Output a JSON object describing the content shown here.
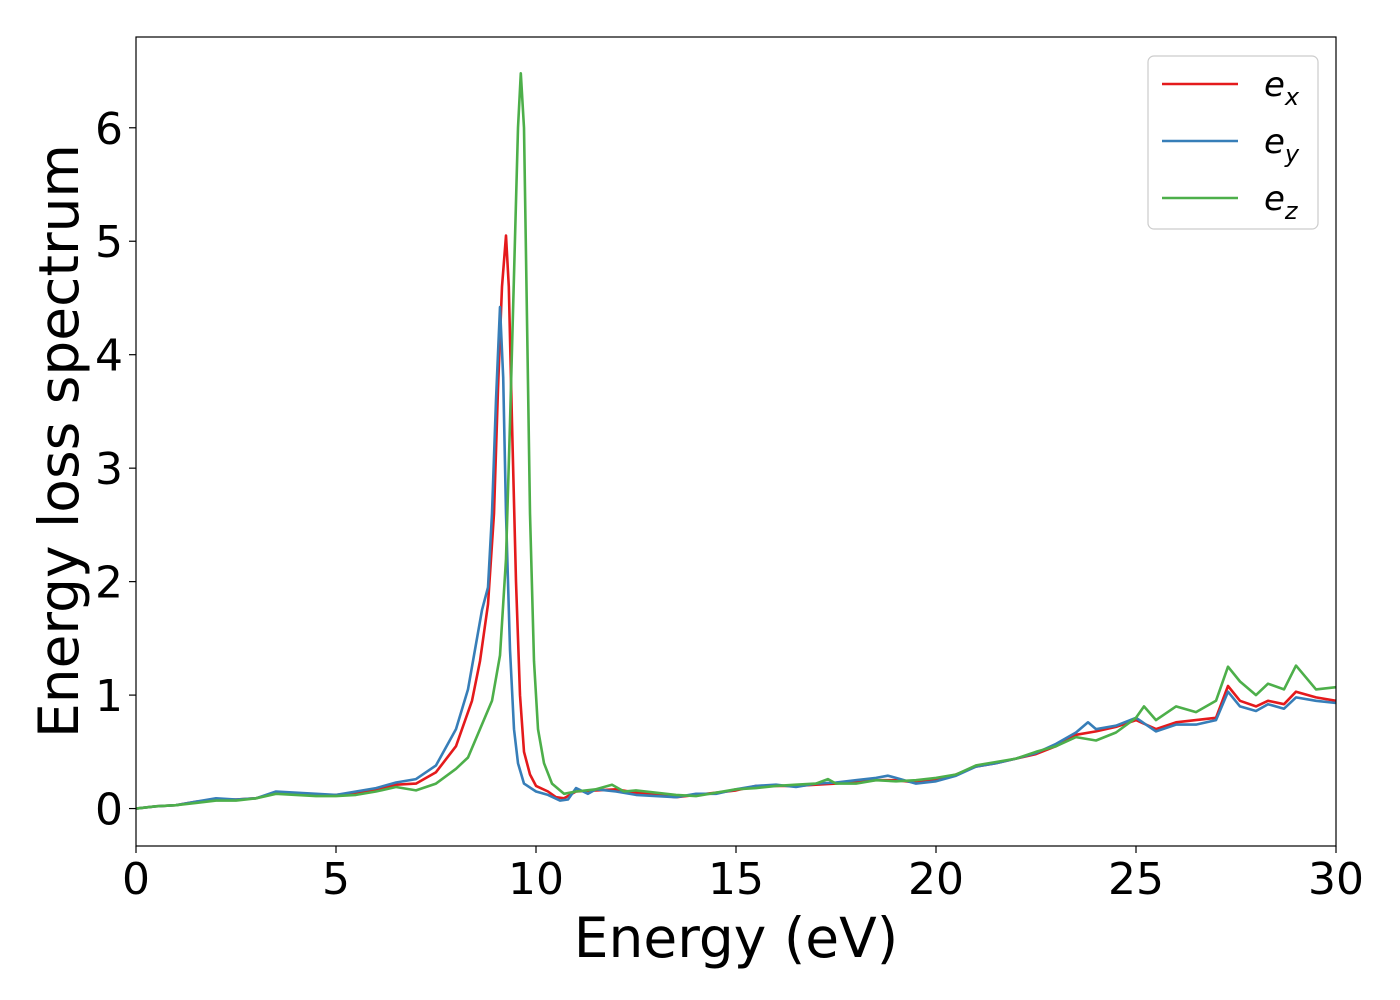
{
  "chart_data": {
    "type": "line",
    "xlabel": "Energy (eV)",
    "ylabel": "Energy loss spectrum",
    "xlim": [
      0,
      30
    ],
    "ylim": [
      -0.33,
      6.8
    ],
    "xticks": [
      "0",
      "5",
      "10",
      "15",
      "20",
      "25",
      "30"
    ],
    "yticks": [
      "0",
      "1",
      "2",
      "3",
      "4",
      "5",
      "6"
    ],
    "grid": false,
    "legend": {
      "position": "top-right"
    },
    "series": [
      {
        "name": "e_x",
        "name_base": "e",
        "name_sub": "x",
        "color": "#e41a1c",
        "points": [
          [
            0,
            0
          ],
          [
            0.5,
            0.02
          ],
          [
            1,
            0.03
          ],
          [
            1.5,
            0.06
          ],
          [
            2,
            0.08
          ],
          [
            2.5,
            0.08
          ],
          [
            3,
            0.09
          ],
          [
            3.5,
            0.14
          ],
          [
            4,
            0.13
          ],
          [
            4.5,
            0.12
          ],
          [
            5,
            0.12
          ],
          [
            5.5,
            0.14
          ],
          [
            6,
            0.16
          ],
          [
            6.5,
            0.21
          ],
          [
            7,
            0.22
          ],
          [
            7.5,
            0.32
          ],
          [
            8,
            0.55
          ],
          [
            8.4,
            0.95
          ],
          [
            8.6,
            1.3
          ],
          [
            8.8,
            1.8
          ],
          [
            8.95,
            2.6
          ],
          [
            9.05,
            3.7
          ],
          [
            9.15,
            4.6
          ],
          [
            9.25,
            5.05
          ],
          [
            9.32,
            4.6
          ],
          [
            9.4,
            3.4
          ],
          [
            9.5,
            2.0
          ],
          [
            9.6,
            1.0
          ],
          [
            9.7,
            0.5
          ],
          [
            9.85,
            0.3
          ],
          [
            10,
            0.2
          ],
          [
            10.3,
            0.15
          ],
          [
            10.5,
            0.1
          ],
          [
            10.7,
            0.09
          ],
          [
            11,
            0.15
          ],
          [
            11.5,
            0.16
          ],
          [
            12,
            0.17
          ],
          [
            12.5,
            0.14
          ],
          [
            13,
            0.12
          ],
          [
            13.5,
            0.1
          ],
          [
            14,
            0.12
          ],
          [
            14.5,
            0.14
          ],
          [
            15,
            0.16
          ],
          [
            15.5,
            0.2
          ],
          [
            16,
            0.2
          ],
          [
            16.5,
            0.2
          ],
          [
            17,
            0.21
          ],
          [
            17.5,
            0.22
          ],
          [
            18,
            0.24
          ],
          [
            18.5,
            0.25
          ],
          [
            19,
            0.25
          ],
          [
            19.5,
            0.23
          ],
          [
            20,
            0.25
          ],
          [
            20.5,
            0.3
          ],
          [
            21,
            0.37
          ],
          [
            21.5,
            0.4
          ],
          [
            22,
            0.44
          ],
          [
            22.5,
            0.48
          ],
          [
            23,
            0.55
          ],
          [
            23.5,
            0.65
          ],
          [
            24,
            0.68
          ],
          [
            24.5,
            0.72
          ],
          [
            25,
            0.78
          ],
          [
            25.5,
            0.7
          ],
          [
            26,
            0.76
          ],
          [
            26.5,
            0.78
          ],
          [
            27,
            0.8
          ],
          [
            27.3,
            1.08
          ],
          [
            27.6,
            0.95
          ],
          [
            28,
            0.9
          ],
          [
            28.3,
            0.95
          ],
          [
            28.7,
            0.92
          ],
          [
            29,
            1.03
          ],
          [
            29.5,
            0.98
          ],
          [
            30,
            0.95
          ]
        ]
      },
      {
        "name": "e_y",
        "name_base": "e",
        "name_sub": "y",
        "color": "#377eb8",
        "points": [
          [
            0,
            0
          ],
          [
            0.5,
            0.02
          ],
          [
            1,
            0.03
          ],
          [
            1.5,
            0.06
          ],
          [
            2,
            0.09
          ],
          [
            2.5,
            0.08
          ],
          [
            3,
            0.09
          ],
          [
            3.5,
            0.15
          ],
          [
            4,
            0.14
          ],
          [
            4.5,
            0.13
          ],
          [
            5,
            0.12
          ],
          [
            5.5,
            0.15
          ],
          [
            6,
            0.18
          ],
          [
            6.5,
            0.23
          ],
          [
            7,
            0.26
          ],
          [
            7.5,
            0.38
          ],
          [
            8,
            0.7
          ],
          [
            8.3,
            1.05
          ],
          [
            8.5,
            1.45
          ],
          [
            8.65,
            1.75
          ],
          [
            8.8,
            1.95
          ],
          [
            8.9,
            2.6
          ],
          [
            9.0,
            3.6
          ],
          [
            9.1,
            4.42
          ],
          [
            9.18,
            3.8
          ],
          [
            9.25,
            2.6
          ],
          [
            9.35,
            1.4
          ],
          [
            9.45,
            0.7
          ],
          [
            9.55,
            0.4
          ],
          [
            9.7,
            0.22
          ],
          [
            10,
            0.15
          ],
          [
            10.3,
            0.12
          ],
          [
            10.6,
            0.07
          ],
          [
            10.8,
            0.08
          ],
          [
            11,
            0.18
          ],
          [
            11.3,
            0.13
          ],
          [
            11.5,
            0.17
          ],
          [
            12,
            0.15
          ],
          [
            12.5,
            0.12
          ],
          [
            13,
            0.11
          ],
          [
            13.5,
            0.1
          ],
          [
            14,
            0.13
          ],
          [
            14.5,
            0.13
          ],
          [
            15,
            0.17
          ],
          [
            15.5,
            0.2
          ],
          [
            16,
            0.21
          ],
          [
            16.5,
            0.19
          ],
          [
            17,
            0.22
          ],
          [
            17.5,
            0.23
          ],
          [
            18,
            0.25
          ],
          [
            18.5,
            0.27
          ],
          [
            18.8,
            0.29
          ],
          [
            19,
            0.27
          ],
          [
            19.5,
            0.22
          ],
          [
            20,
            0.24
          ],
          [
            20.5,
            0.29
          ],
          [
            21,
            0.37
          ],
          [
            21.5,
            0.4
          ],
          [
            22,
            0.44
          ],
          [
            22.5,
            0.49
          ],
          [
            23,
            0.57
          ],
          [
            23.5,
            0.67
          ],
          [
            23.8,
            0.76
          ],
          [
            24,
            0.7
          ],
          [
            24.5,
            0.73
          ],
          [
            25,
            0.8
          ],
          [
            25.5,
            0.68
          ],
          [
            26,
            0.74
          ],
          [
            26.5,
            0.74
          ],
          [
            27,
            0.78
          ],
          [
            27.3,
            1.03
          ],
          [
            27.6,
            0.9
          ],
          [
            28,
            0.86
          ],
          [
            28.3,
            0.92
          ],
          [
            28.7,
            0.88
          ],
          [
            29,
            0.98
          ],
          [
            29.5,
            0.95
          ],
          [
            30,
            0.93
          ]
        ]
      },
      {
        "name": "e_z",
        "name_base": "e",
        "name_sub": "z",
        "color": "#4daf4a",
        "points": [
          [
            0,
            0
          ],
          [
            0.5,
            0.02
          ],
          [
            1,
            0.03
          ],
          [
            1.5,
            0.05
          ],
          [
            2,
            0.07
          ],
          [
            2.5,
            0.07
          ],
          [
            3,
            0.09
          ],
          [
            3.5,
            0.13
          ],
          [
            4,
            0.12
          ],
          [
            4.5,
            0.11
          ],
          [
            5,
            0.11
          ],
          [
            5.5,
            0.12
          ],
          [
            6,
            0.15
          ],
          [
            6.5,
            0.19
          ],
          [
            7,
            0.16
          ],
          [
            7.5,
            0.22
          ],
          [
            8,
            0.35
          ],
          [
            8.3,
            0.45
          ],
          [
            8.6,
            0.7
          ],
          [
            8.9,
            0.95
          ],
          [
            9.1,
            1.35
          ],
          [
            9.25,
            2.2
          ],
          [
            9.35,
            3.4
          ],
          [
            9.45,
            4.7
          ],
          [
            9.55,
            6.0
          ],
          [
            9.62,
            6.48
          ],
          [
            9.7,
            6.0
          ],
          [
            9.78,
            4.2
          ],
          [
            9.85,
            2.6
          ],
          [
            9.95,
            1.3
          ],
          [
            10.05,
            0.7
          ],
          [
            10.2,
            0.4
          ],
          [
            10.4,
            0.22
          ],
          [
            10.7,
            0.13
          ],
          [
            11,
            0.15
          ],
          [
            11.5,
            0.17
          ],
          [
            11.9,
            0.21
          ],
          [
            12.2,
            0.15
          ],
          [
            12.5,
            0.16
          ],
          [
            13,
            0.14
          ],
          [
            13.5,
            0.12
          ],
          [
            14,
            0.11
          ],
          [
            14.5,
            0.14
          ],
          [
            15,
            0.17
          ],
          [
            15.5,
            0.18
          ],
          [
            16,
            0.2
          ],
          [
            16.5,
            0.21
          ],
          [
            17,
            0.22
          ],
          [
            17.3,
            0.26
          ],
          [
            17.5,
            0.22
          ],
          [
            18,
            0.22
          ],
          [
            18.5,
            0.25
          ],
          [
            19,
            0.24
          ],
          [
            19.5,
            0.25
          ],
          [
            20,
            0.27
          ],
          [
            20.5,
            0.3
          ],
          [
            21,
            0.38
          ],
          [
            21.5,
            0.41
          ],
          [
            22,
            0.44
          ],
          [
            22.5,
            0.5
          ],
          [
            23,
            0.55
          ],
          [
            23.5,
            0.63
          ],
          [
            24,
            0.6
          ],
          [
            24.5,
            0.67
          ],
          [
            25,
            0.8
          ],
          [
            25.2,
            0.9
          ],
          [
            25.5,
            0.78
          ],
          [
            26,
            0.9
          ],
          [
            26.5,
            0.85
          ],
          [
            27,
            0.95
          ],
          [
            27.3,
            1.25
          ],
          [
            27.6,
            1.12
          ],
          [
            28,
            1.0
          ],
          [
            28.3,
            1.1
          ],
          [
            28.7,
            1.05
          ],
          [
            29,
            1.26
          ],
          [
            29.5,
            1.05
          ],
          [
            30,
            1.07
          ]
        ]
      }
    ]
  }
}
